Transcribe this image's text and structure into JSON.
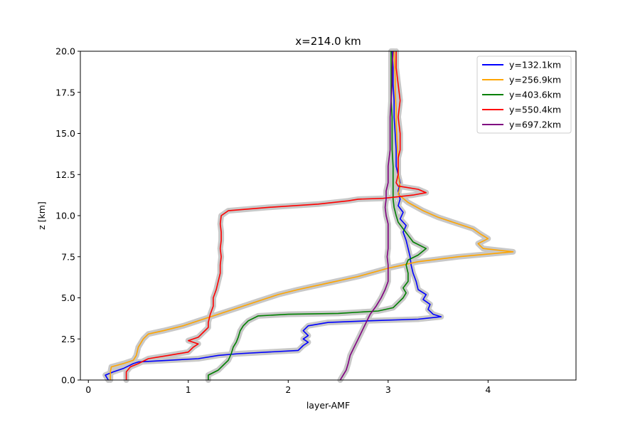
{
  "chart_data": {
    "type": "line",
    "title": "x=214.0 km",
    "xlabel": "layer-AMF",
    "ylabel": "z [km]",
    "xlim": [
      -0.08,
      4.88
    ],
    "ylim": [
      0,
      20
    ],
    "xticks": [
      0,
      1,
      2,
      3,
      4
    ],
    "yticks": [
      0.0,
      2.5,
      5.0,
      7.5,
      10.0,
      12.5,
      15.0,
      17.5,
      20.0
    ],
    "xtick_labels": [
      "0",
      "1",
      "2",
      "3",
      "4"
    ],
    "ytick_labels": [
      "0.0",
      "2.5",
      "5.0",
      "7.5",
      "10.0",
      "12.5",
      "15.0",
      "17.5",
      "20.0"
    ],
    "grid": false,
    "legend_position": "top-right",
    "uncertainty_band_color": "#c8c8c8",
    "series": [
      {
        "name": "y=132.1km",
        "color": "#0000ff",
        "points": [
          [
            0.2,
            0.0
          ],
          [
            0.17,
            0.3
          ],
          [
            0.25,
            0.5
          ],
          [
            0.35,
            0.7
          ],
          [
            0.45,
            1.0
          ],
          [
            0.5,
            1.1
          ],
          [
            0.8,
            1.2
          ],
          [
            1.1,
            1.3
          ],
          [
            1.3,
            1.5
          ],
          [
            1.5,
            1.6
          ],
          [
            1.8,
            1.7
          ],
          [
            2.1,
            1.8
          ],
          [
            2.15,
            2.1
          ],
          [
            2.2,
            2.3
          ],
          [
            2.15,
            2.5
          ],
          [
            2.2,
            2.7
          ],
          [
            2.15,
            3.0
          ],
          [
            2.2,
            3.3
          ],
          [
            2.4,
            3.5
          ],
          [
            2.8,
            3.6
          ],
          [
            3.3,
            3.7
          ],
          [
            3.53,
            3.85
          ],
          [
            3.45,
            4.0
          ],
          [
            3.4,
            4.3
          ],
          [
            3.42,
            4.6
          ],
          [
            3.35,
            4.9
          ],
          [
            3.38,
            5.2
          ],
          [
            3.3,
            5.5
          ],
          [
            3.28,
            6.0
          ],
          [
            3.25,
            6.5
          ],
          [
            3.23,
            7.0
          ],
          [
            3.22,
            7.5
          ],
          [
            3.2,
            8.0
          ],
          [
            3.18,
            8.5
          ],
          [
            3.15,
            9.0
          ],
          [
            3.18,
            9.4
          ],
          [
            3.12,
            9.8
          ],
          [
            3.15,
            10.2
          ],
          [
            3.1,
            10.6
          ],
          [
            3.12,
            11.0
          ],
          [
            3.1,
            11.5
          ],
          [
            3.12,
            12.0
          ],
          [
            3.1,
            12.5
          ],
          [
            3.08,
            13.0
          ],
          [
            3.08,
            14.0
          ],
          [
            3.07,
            15.0
          ],
          [
            3.06,
            16.0
          ],
          [
            3.06,
            17.0
          ],
          [
            3.05,
            18.0
          ],
          [
            3.05,
            19.0
          ],
          [
            3.04,
            20.0
          ]
        ]
      },
      {
        "name": "y=256.9km",
        "color": "#ffa500",
        "points": [
          [
            0.22,
            0.0
          ],
          [
            0.22,
            0.5
          ],
          [
            0.23,
            0.8
          ],
          [
            0.35,
            1.0
          ],
          [
            0.45,
            1.2
          ],
          [
            0.48,
            1.5
          ],
          [
            0.5,
            2.0
          ],
          [
            0.55,
            2.5
          ],
          [
            0.6,
            2.8
          ],
          [
            0.75,
            3.0
          ],
          [
            0.95,
            3.3
          ],
          [
            1.1,
            3.6
          ],
          [
            1.3,
            4.0
          ],
          [
            1.5,
            4.4
          ],
          [
            1.7,
            4.8
          ],
          [
            1.9,
            5.2
          ],
          [
            2.1,
            5.5
          ],
          [
            2.4,
            5.9
          ],
          [
            2.7,
            6.3
          ],
          [
            3.0,
            6.8
          ],
          [
            3.3,
            7.2
          ],
          [
            3.7,
            7.5
          ],
          [
            4.25,
            7.8
          ],
          [
            3.95,
            8.0
          ],
          [
            3.9,
            8.3
          ],
          [
            4.0,
            8.6
          ],
          [
            3.92,
            8.9
          ],
          [
            3.85,
            9.2
          ],
          [
            3.7,
            9.5
          ],
          [
            3.5,
            9.9
          ],
          [
            3.35,
            10.3
          ],
          [
            3.2,
            10.8
          ],
          [
            3.1,
            11.3
          ],
          [
            3.12,
            11.8
          ],
          [
            3.1,
            12.5
          ],
          [
            3.1,
            13.5
          ],
          [
            3.09,
            14.5
          ],
          [
            3.08,
            15.5
          ],
          [
            3.08,
            16.5
          ],
          [
            3.07,
            17.5
          ],
          [
            3.07,
            18.5
          ],
          [
            3.06,
            20.0
          ]
        ]
      },
      {
        "name": "y=403.6km",
        "color": "#008000",
        "points": [
          [
            1.2,
            0.0
          ],
          [
            1.2,
            0.3
          ],
          [
            1.3,
            0.6
          ],
          [
            1.35,
            0.9
          ],
          [
            1.4,
            1.2
          ],
          [
            1.43,
            1.6
          ],
          [
            1.45,
            2.0
          ],
          [
            1.48,
            2.3
          ],
          [
            1.5,
            2.6
          ],
          [
            1.52,
            3.0
          ],
          [
            1.55,
            3.3
          ],
          [
            1.6,
            3.6
          ],
          [
            1.7,
            3.9
          ],
          [
            2.0,
            4.0
          ],
          [
            2.5,
            4.05
          ],
          [
            2.9,
            4.2
          ],
          [
            3.05,
            4.4
          ],
          [
            3.1,
            4.7
          ],
          [
            3.15,
            5.0
          ],
          [
            3.18,
            5.3
          ],
          [
            3.15,
            5.6
          ],
          [
            3.2,
            6.0
          ],
          [
            3.2,
            6.5
          ],
          [
            3.18,
            7.0
          ],
          [
            3.2,
            7.3
          ],
          [
            3.3,
            7.6
          ],
          [
            3.38,
            8.0
          ],
          [
            3.25,
            8.4
          ],
          [
            3.2,
            8.8
          ],
          [
            3.15,
            9.2
          ],
          [
            3.1,
            9.6
          ],
          [
            3.08,
            10.0
          ],
          [
            3.06,
            10.5
          ],
          [
            3.05,
            11.0
          ],
          [
            3.05,
            11.5
          ],
          [
            3.05,
            12.0
          ],
          [
            3.05,
            13.0
          ],
          [
            3.04,
            14.0
          ],
          [
            3.04,
            15.0
          ],
          [
            3.04,
            16.0
          ],
          [
            3.03,
            17.0
          ],
          [
            3.03,
            18.0
          ],
          [
            3.03,
            19.0
          ],
          [
            3.03,
            20.0
          ]
        ]
      },
      {
        "name": "y=550.4km",
        "color": "#ff0000",
        "points": [
          [
            0.38,
            0.0
          ],
          [
            0.38,
            0.5
          ],
          [
            0.42,
            0.8
          ],
          [
            0.5,
            1.0
          ],
          [
            0.6,
            1.3
          ],
          [
            0.8,
            1.5
          ],
          [
            1.0,
            1.7
          ],
          [
            1.05,
            2.0
          ],
          [
            1.1,
            2.2
          ],
          [
            1.0,
            2.4
          ],
          [
            1.1,
            2.6
          ],
          [
            1.15,
            2.9
          ],
          [
            1.2,
            3.2
          ],
          [
            1.2,
            3.5
          ],
          [
            1.22,
            4.0
          ],
          [
            1.25,
            4.5
          ],
          [
            1.25,
            5.0
          ],
          [
            1.28,
            5.5
          ],
          [
            1.3,
            6.0
          ],
          [
            1.32,
            6.5
          ],
          [
            1.32,
            7.0
          ],
          [
            1.33,
            7.5
          ],
          [
            1.32,
            8.0
          ],
          [
            1.33,
            8.5
          ],
          [
            1.33,
            9.0
          ],
          [
            1.32,
            9.5
          ],
          [
            1.33,
            10.0
          ],
          [
            1.4,
            10.3
          ],
          [
            1.8,
            10.5
          ],
          [
            2.3,
            10.7
          ],
          [
            2.6,
            10.9
          ],
          [
            2.7,
            11.0
          ],
          [
            2.95,
            11.05
          ],
          [
            3.1,
            11.15
          ],
          [
            3.25,
            11.25
          ],
          [
            3.38,
            11.4
          ],
          [
            3.3,
            11.6
          ],
          [
            3.1,
            11.8
          ],
          [
            3.08,
            12.0
          ],
          [
            3.1,
            12.5
          ],
          [
            3.1,
            13.0
          ],
          [
            3.1,
            13.5
          ],
          [
            3.12,
            14.0
          ],
          [
            3.12,
            15.0
          ],
          [
            3.1,
            16.0
          ],
          [
            3.12,
            17.0
          ],
          [
            3.1,
            18.0
          ],
          [
            3.08,
            19.0
          ],
          [
            3.08,
            20.0
          ]
        ]
      },
      {
        "name": "y=697.2km",
        "color": "#800080",
        "points": [
          [
            2.52,
            0.0
          ],
          [
            2.55,
            0.3
          ],
          [
            2.58,
            0.6
          ],
          [
            2.6,
            1.0
          ],
          [
            2.62,
            1.5
          ],
          [
            2.66,
            2.0
          ],
          [
            2.7,
            2.5
          ],
          [
            2.74,
            3.0
          ],
          [
            2.78,
            3.5
          ],
          [
            2.82,
            4.0
          ],
          [
            2.88,
            4.5
          ],
          [
            2.93,
            5.0
          ],
          [
            2.97,
            5.5
          ],
          [
            3.0,
            6.0
          ],
          [
            3.0,
            6.5
          ],
          [
            3.0,
            7.0
          ],
          [
            2.99,
            7.5
          ],
          [
            3.0,
            8.0
          ],
          [
            3.0,
            8.5
          ],
          [
            3.0,
            9.0
          ],
          [
            3.0,
            9.5
          ],
          [
            2.98,
            10.0
          ],
          [
            2.97,
            10.5
          ],
          [
            2.98,
            11.0
          ],
          [
            2.98,
            11.5
          ],
          [
            3.0,
            12.0
          ],
          [
            3.0,
            12.5
          ],
          [
            3.0,
            13.0
          ],
          [
            3.02,
            14.0
          ],
          [
            3.02,
            15.0
          ],
          [
            3.02,
            16.0
          ],
          [
            3.03,
            17.0
          ],
          [
            3.04,
            18.0
          ],
          [
            3.04,
            19.0
          ],
          [
            3.05,
            20.0
          ]
        ]
      }
    ]
  }
}
